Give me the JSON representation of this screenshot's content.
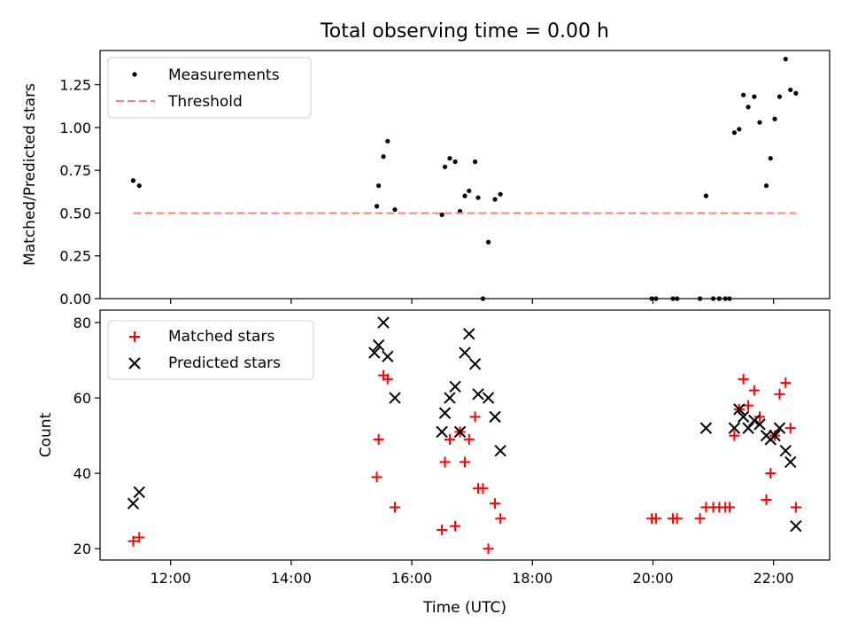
{
  "title": "Total observing time = 0.00 h",
  "colors": {
    "measurement": "#000000",
    "threshold": "#ff8080",
    "matched": "#ff0000",
    "predicted": "#000000"
  },
  "chart_data": [
    {
      "type": "scatter",
      "ylabel": "Matched/Predicted stars",
      "xlim": [
        10.83,
        22.93
      ],
      "ylim": [
        0,
        1.45
      ],
      "yticks": [
        0.0,
        0.25,
        0.5,
        0.75,
        1.0,
        1.25
      ],
      "ytick_labels": [
        "0.00",
        "0.25",
        "0.50",
        "0.75",
        "1.00",
        "1.25"
      ],
      "legend": {
        "placement": "top-left",
        "entries": [
          "Measurements",
          "Threshold"
        ]
      },
      "series": [
        {
          "name": "Measurements",
          "marker": "dot",
          "x": [
            11.38,
            11.48,
            15.42,
            15.45,
            15.53,
            15.6,
            15.72,
            16.5,
            16.55,
            16.63,
            16.72,
            16.8,
            16.88,
            16.95,
            17.05,
            17.1,
            17.18,
            17.27,
            17.38,
            17.47,
            19.98,
            20.05,
            20.33,
            20.4,
            20.78,
            20.88,
            21.0,
            21.1,
            21.2,
            21.27,
            21.35,
            21.43,
            21.5,
            21.58,
            21.68,
            21.77,
            21.88,
            21.95,
            22.02,
            22.1,
            22.2,
            22.28,
            22.37
          ],
          "y": [
            0.69,
            0.66,
            0.54,
            0.66,
            0.83,
            0.92,
            0.52,
            0.49,
            0.77,
            0.82,
            0.8,
            0.51,
            0.6,
            0.63,
            0.8,
            0.59,
            0.0,
            0.33,
            0.58,
            0.61,
            0.0,
            0.0,
            0.0,
            0.0,
            0.0,
            0.6,
            0.0,
            0.0,
            0.0,
            0.0,
            0.97,
            0.99,
            1.19,
            1.12,
            1.18,
            1.03,
            0.66,
            0.82,
            1.05,
            1.18,
            1.4,
            1.22,
            1.2
          ]
        },
        {
          "name": "Threshold",
          "marker": "dashed-line",
          "x": [
            11.38,
            22.37
          ],
          "y": [
            0.5,
            0.5
          ]
        }
      ]
    },
    {
      "type": "scatter",
      "ylabel": "Count",
      "xlabel": "Time (UTC)",
      "xlim": [
        10.83,
        22.93
      ],
      "ylim": [
        17.0,
        83.3
      ],
      "yticks": [
        20,
        40,
        60,
        80
      ],
      "ytick_labels": [
        "20",
        "40",
        "60",
        "80"
      ],
      "xticks": [
        12,
        14,
        16,
        18,
        20,
        22
      ],
      "xtick_labels": [
        "12:00",
        "14:00",
        "16:00",
        "18:00",
        "20:00",
        "22:00"
      ],
      "legend": {
        "placement": "top-left",
        "entries": [
          "Matched stars",
          "Predicted stars"
        ]
      },
      "series": [
        {
          "name": "Matched stars",
          "marker": "plus",
          "x": [
            11.38,
            11.48,
            15.42,
            15.45,
            15.53,
            15.6,
            15.72,
            16.5,
            16.55,
            16.63,
            16.72,
            16.8,
            16.88,
            16.95,
            17.05,
            17.1,
            17.18,
            17.27,
            17.38,
            17.47,
            19.98,
            20.05,
            20.33,
            20.4,
            20.78,
            20.88,
            21.0,
            21.1,
            21.2,
            21.27,
            21.35,
            21.43,
            21.5,
            21.58,
            21.68,
            21.77,
            21.88,
            21.95,
            22.02,
            22.1,
            22.2,
            22.28,
            22.37
          ],
          "y": [
            22,
            23,
            39,
            49,
            66,
            65,
            31,
            25,
            43,
            49,
            26,
            51,
            43,
            49,
            55,
            36,
            36,
            20,
            32,
            28,
            28,
            28,
            28,
            28,
            28,
            31,
            31,
            31,
            31,
            31,
            50,
            57,
            65,
            58,
            62,
            55,
            33,
            40,
            50,
            61,
            64,
            52,
            31
          ]
        },
        {
          "name": "Predicted stars",
          "marker": "x",
          "x": [
            11.38,
            11.48,
            15.38,
            15.45,
            15.53,
            15.6,
            15.72,
            16.5,
            16.55,
            16.63,
            16.72,
            16.8,
            16.88,
            16.95,
            17.05,
            17.1,
            17.27,
            17.38,
            17.47,
            20.88,
            21.35,
            21.43,
            21.5,
            21.58,
            21.68,
            21.77,
            21.88,
            21.95,
            22.02,
            22.1,
            22.2,
            22.28,
            22.37
          ],
          "y": [
            32,
            35,
            72,
            74,
            80,
            71,
            60,
            51,
            56,
            60,
            63,
            51,
            72,
            77,
            69,
            61,
            60,
            55,
            46,
            52,
            52,
            57,
            55,
            52,
            54,
            53,
            50,
            49,
            50,
            52,
            46,
            43,
            26
          ]
        }
      ]
    }
  ]
}
